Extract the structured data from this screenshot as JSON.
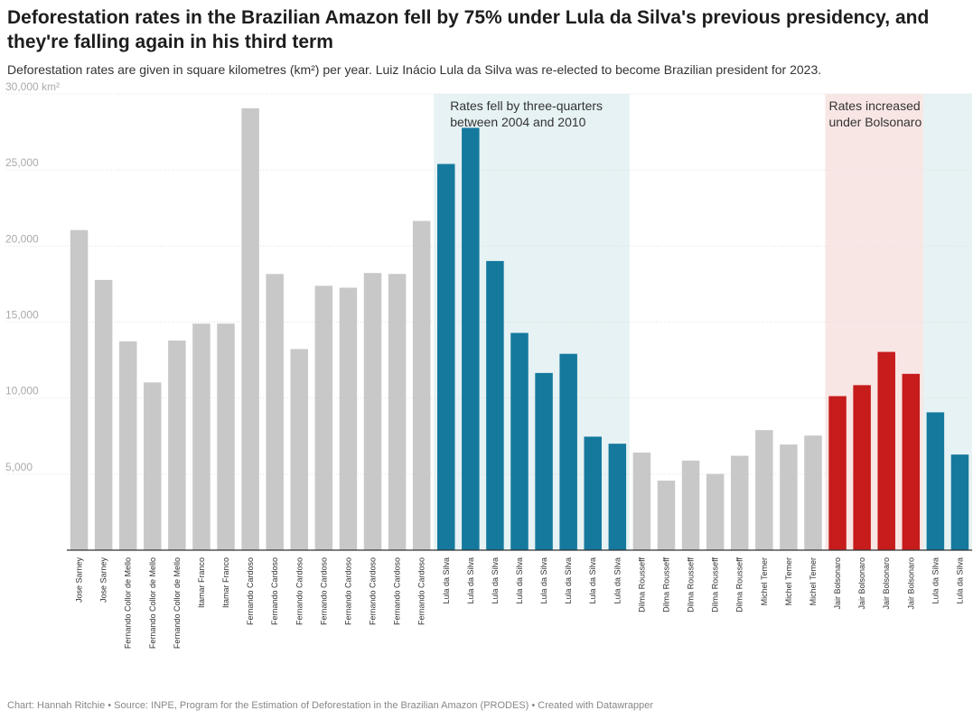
{
  "chart_data": {
    "type": "bar",
    "title": "Deforestation rates in the Brazilian Amazon fell by 75% under Lula da Silva's previous presidency, and they're falling again in his third term",
    "subtitle": "Deforestation rates are given in square kilometres (km²) per year. Luiz Inácio Lula da Silva was re-elected to become Brazilian president for 2023.",
    "footer": "Chart: Hannah Ritchie • Source: INPE, Program for the Estimation of Deforestation in the Brazilian Amazon (PRODES) • Created with Datawrapper",
    "ylim": [
      0,
      30000
    ],
    "ytick_values": [
      5000,
      10000,
      15000,
      20000,
      25000,
      30000
    ],
    "ytick_labels": [
      "5,000",
      "10,000",
      "15,000",
      "20,000",
      "25,000",
      "30,000 km²"
    ],
    "grid": true,
    "categories": [
      "Jose Sarney",
      "Jose Sarney",
      "Fernando Collor de Mello",
      "Fernando Collor de Mello",
      "Fernando Collor de Mello",
      "Itamar Franco",
      "Itamar Franco",
      "Fernando Cardoso",
      "Fernando Cardoso",
      "Fernando Cardoso",
      "Fernando Cardoso",
      "Fernando Cardoso",
      "Fernando Cardoso",
      "Fernando Cardoso",
      "Fernando Cardoso",
      "Lula da Silva",
      "Lula da Silva",
      "Lula da Silva",
      "Lula da Silva",
      "Lula da Silva",
      "Lula da Silva",
      "Lula da Silva",
      "Lula da Silva",
      "Dilma Rousseff",
      "Dilma Rousseff",
      "Dilma Rousseff",
      "Dilma Rousseff",
      "Dilma Rousseff",
      "Michel Temer",
      "Michel Temer",
      "Michel Temer",
      "Jair Bolsonaro",
      "Jair Bolsonaro",
      "Jair Bolsonaro",
      "Jair Bolsonaro",
      "Lula da Silva",
      "Lula da Silva"
    ],
    "values": [
      21050,
      17770,
      13730,
      11030,
      13786,
      14896,
      14896,
      29059,
      18161,
      13227,
      17383,
      17259,
      18226,
      18165,
      21650,
      25396,
      27772,
      19014,
      14286,
      11651,
      12911,
      7464,
      7000,
      6418,
      4571,
      5891,
      5012,
      6207,
      7893,
      6947,
      7536,
      10129,
      10851,
      13038,
      11594,
      9064,
      6288
    ],
    "bar_colors": [
      "#c8c8c8",
      "#c8c8c8",
      "#c8c8c8",
      "#c8c8c8",
      "#c8c8c8",
      "#c8c8c8",
      "#c8c8c8",
      "#c8c8c8",
      "#c8c8c8",
      "#c8c8c8",
      "#c8c8c8",
      "#c8c8c8",
      "#c8c8c8",
      "#c8c8c8",
      "#c8c8c8",
      "#15799e",
      "#15799e",
      "#15799e",
      "#15799e",
      "#15799e",
      "#15799e",
      "#15799e",
      "#15799e",
      "#c8c8c8",
      "#c8c8c8",
      "#c8c8c8",
      "#c8c8c8",
      "#c8c8c8",
      "#c8c8c8",
      "#c8c8c8",
      "#c8c8c8",
      "#c61c1c",
      "#c61c1c",
      "#c61c1c",
      "#c61c1c",
      "#15799e",
      "#15799e"
    ],
    "highlights": [
      {
        "from": 15,
        "to": 22,
        "color": "#e6f2f3",
        "label": [
          "Rates fell by three-quarters",
          "between 2004 and 2010"
        ]
      },
      {
        "from": 31,
        "to": 34,
        "color": "#f8e6e4",
        "label": [
          "Rates increased",
          "under Bolsonaro"
        ]
      },
      {
        "from": 35,
        "to": 36,
        "color": "#e6f2f3",
        "label": []
      }
    ]
  }
}
